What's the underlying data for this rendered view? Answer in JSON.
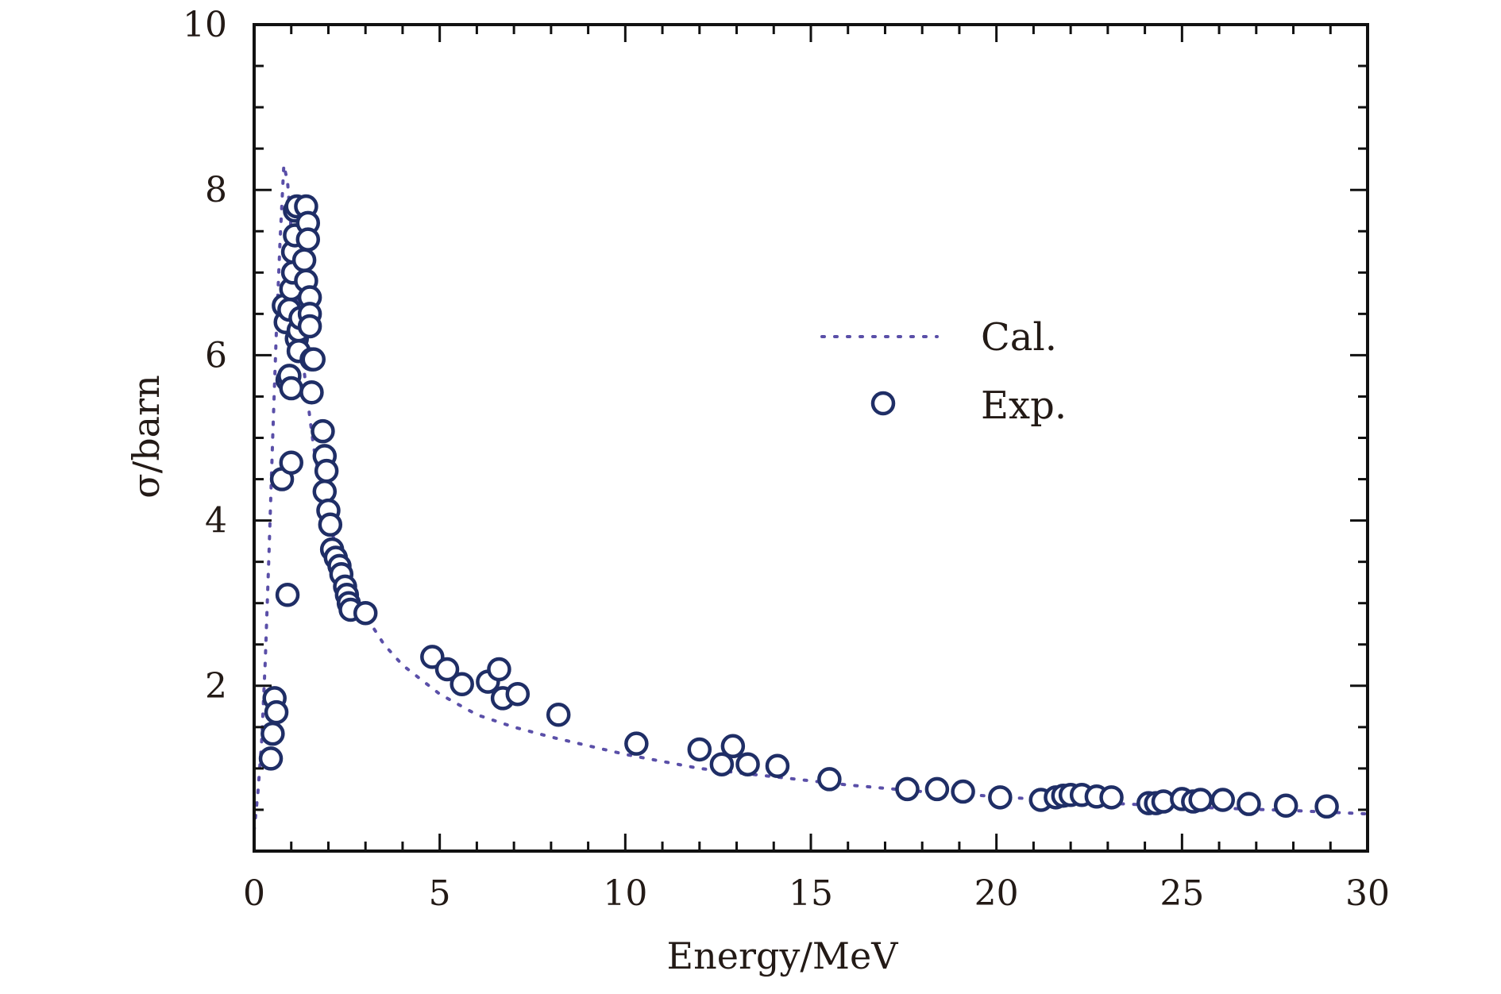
{
  "chart_data": {
    "type": "scatter",
    "xlabel": "Energy/MeV",
    "ylabel": "σ/barn",
    "xlim": [
      0,
      30
    ],
    "ylim": [
      0,
      10
    ],
    "xticks": [
      "0",
      "5",
      "10",
      "15",
      "20",
      "25",
      "30"
    ],
    "yticks": [
      "2",
      "4",
      "6",
      "8",
      "10"
    ],
    "grid": false,
    "legend_position": "upper-right",
    "colors": {
      "exp": "#1f2e66",
      "cal": "#5a4fa8",
      "axis": "#111111"
    },
    "series": [
      {
        "name": "Cal.",
        "style": "dotted-line",
        "x": [
          0.0,
          0.1,
          0.2,
          0.3,
          0.4,
          0.5,
          0.6,
          0.7,
          0.8,
          0.9,
          1.0,
          1.1,
          1.2,
          1.4,
          1.6,
          1.8,
          2.0,
          2.2,
          2.5,
          3.0,
          3.5,
          4.0,
          5.0,
          6.0,
          7.0,
          8.0,
          10.0,
          12.0,
          14.0,
          16.0,
          18.0,
          20.0,
          22.0,
          24.0,
          26.0,
          28.0,
          30.0
        ],
        "y": [
          0.25,
          0.7,
          1.3,
          2.3,
          3.6,
          5.0,
          6.3,
          7.4,
          8.3,
          8.1,
          7.5,
          6.9,
          6.4,
          5.6,
          4.9,
          4.4,
          4.0,
          3.7,
          3.3,
          2.85,
          2.5,
          2.25,
          1.9,
          1.65,
          1.5,
          1.38,
          1.17,
          1.0,
          0.9,
          0.8,
          0.72,
          0.66,
          0.6,
          0.56,
          0.52,
          0.49,
          0.45
        ]
      },
      {
        "name": "Exp.",
        "style": "open-circle",
        "x": [
          0.45,
          0.5,
          0.55,
          0.6,
          0.75,
          0.8,
          0.85,
          0.9,
          0.9,
          0.95,
          0.95,
          1.0,
          1.0,
          1.0,
          1.05,
          1.05,
          1.1,
          1.1,
          1.15,
          1.15,
          1.2,
          1.2,
          1.25,
          1.35,
          1.4,
          1.4,
          1.45,
          1.45,
          1.5,
          1.5,
          1.5,
          1.55,
          1.55,
          1.6,
          1.85,
          1.9,
          1.9,
          1.95,
          2.0,
          2.05,
          2.1,
          2.2,
          2.3,
          2.35,
          2.45,
          2.5,
          2.55,
          2.6,
          3.0,
          4.8,
          5.2,
          5.6,
          6.3,
          6.6,
          6.7,
          7.1,
          8.2,
          10.3,
          12.0,
          12.6,
          12.9,
          13.3,
          14.1,
          15.5,
          17.6,
          18.4,
          19.1,
          20.1,
          21.2,
          21.6,
          21.8,
          22.0,
          22.3,
          22.7,
          23.1,
          24.1,
          24.3,
          24.5,
          25.0,
          25.3,
          25.5,
          26.1,
          26.8,
          27.8,
          28.9
        ],
        "y": [
          1.12,
          1.42,
          1.85,
          1.68,
          4.5,
          6.6,
          6.4,
          5.7,
          3.1,
          5.75,
          6.55,
          4.7,
          5.6,
          6.8,
          7.0,
          7.25,
          7.45,
          7.75,
          7.8,
          6.2,
          6.05,
          6.3,
          6.45,
          7.15,
          7.8,
          6.9,
          7.6,
          7.4,
          6.7,
          6.5,
          6.35,
          5.55,
          5.95,
          5.95,
          5.08,
          4.78,
          4.35,
          4.6,
          4.12,
          3.95,
          3.65,
          3.55,
          3.45,
          3.35,
          3.2,
          3.1,
          3.0,
          2.92,
          2.88,
          2.35,
          2.2,
          2.02,
          2.05,
          2.2,
          1.85,
          1.9,
          1.65,
          1.3,
          1.23,
          1.05,
          1.27,
          1.05,
          1.03,
          0.87,
          0.75,
          0.75,
          0.72,
          0.65,
          0.62,
          0.65,
          0.67,
          0.68,
          0.68,
          0.66,
          0.65,
          0.58,
          0.58,
          0.6,
          0.63,
          0.6,
          0.62,
          0.62,
          0.57,
          0.55,
          0.54
        ]
      }
    ]
  }
}
